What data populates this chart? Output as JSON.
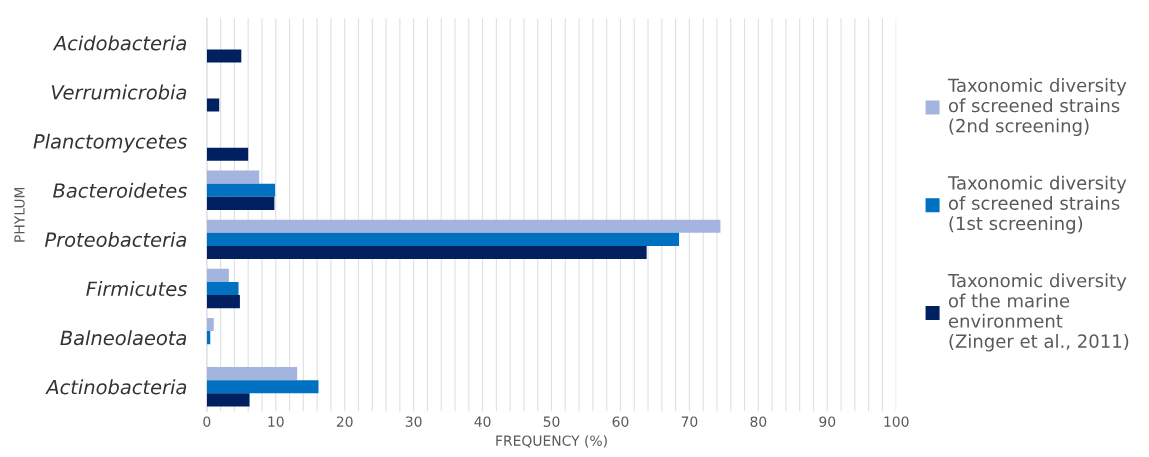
{
  "chart_data": {
    "type": "bar",
    "orientation": "horizontal",
    "xlabel": "FREQUENCY (%)",
    "ylabel": "PHYLUM",
    "categories": [
      "Acidobacteria",
      "Verrumicrobia",
      "Planctomycetes",
      "Bacteroidetes",
      "Proteobacteria",
      "Firmicutes",
      "Balneolaeota",
      "Actinobacteria"
    ],
    "series": [
      {
        "name": "Taxonomic diversity\nof screened strains\n(2nd screening)",
        "color": "#a3b4df",
        "values": [
          null,
          null,
          null,
          7.6,
          74.5,
          3.2,
          1.0,
          13.1
        ]
      },
      {
        "name": "Taxonomic diversity\nof screened strains\n(1st screening)",
        "color": "#0070c0",
        "values": [
          null,
          null,
          null,
          9.9,
          68.5,
          4.6,
          0.5,
          16.2
        ]
      },
      {
        "name": "Taxonomic diversity\nof the marine\nenvironment\n(Zinger et al., 2011)",
        "color": "#002060",
        "values": [
          5.0,
          1.8,
          6.0,
          9.8,
          63.8,
          4.8,
          null,
          6.2
        ]
      }
    ],
    "xlim": [
      0,
      100
    ],
    "xticks": [
      0,
      10,
      20,
      30,
      40,
      50,
      60,
      70,
      80,
      90,
      100
    ],
    "grid": "x",
    "legend": "right"
  }
}
